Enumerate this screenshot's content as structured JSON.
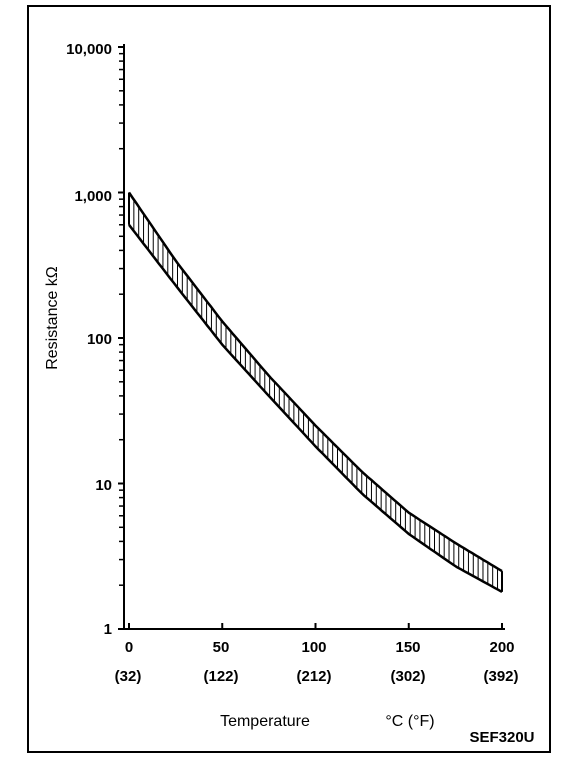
{
  "chart_data": {
    "type": "area",
    "title": "",
    "ylabel": "Resistance kΩ",
    "xlabel": "Temperature",
    "unit_label": "°C (°F)",
    "code": "SEF320U",
    "y_scale": "log",
    "ylim": [
      1,
      10000
    ],
    "xlim": [
      0,
      200
    ],
    "y_ticks": [
      "10,000",
      "1,000",
      "100",
      "10",
      "1"
    ],
    "y_tick_values": [
      10000,
      1000,
      100,
      10,
      1
    ],
    "x_ticks": [
      "0",
      "50",
      "100",
      "150",
      "200"
    ],
    "x_tick_values": [
      0,
      50,
      100,
      150,
      200
    ],
    "x_ticks_f": [
      "(32)",
      "(122)",
      "(212)",
      "(302)",
      "(392)"
    ],
    "grid": false,
    "band_hatch": "vertical",
    "series": [
      {
        "x": [
          0,
          25,
          50,
          75,
          100,
          125,
          150,
          175,
          200
        ],
        "values": [
          1000,
          340,
          130,
          55,
          25,
          12,
          6.3,
          3.9,
          2.5
        ]
      },
      {
        "x": [
          0,
          25,
          50,
          75,
          100,
          125,
          150,
          175,
          200
        ],
        "values": [
          600,
          230,
          90,
          40,
          18,
          8.5,
          4.5,
          2.7,
          1.8
        ]
      }
    ]
  }
}
